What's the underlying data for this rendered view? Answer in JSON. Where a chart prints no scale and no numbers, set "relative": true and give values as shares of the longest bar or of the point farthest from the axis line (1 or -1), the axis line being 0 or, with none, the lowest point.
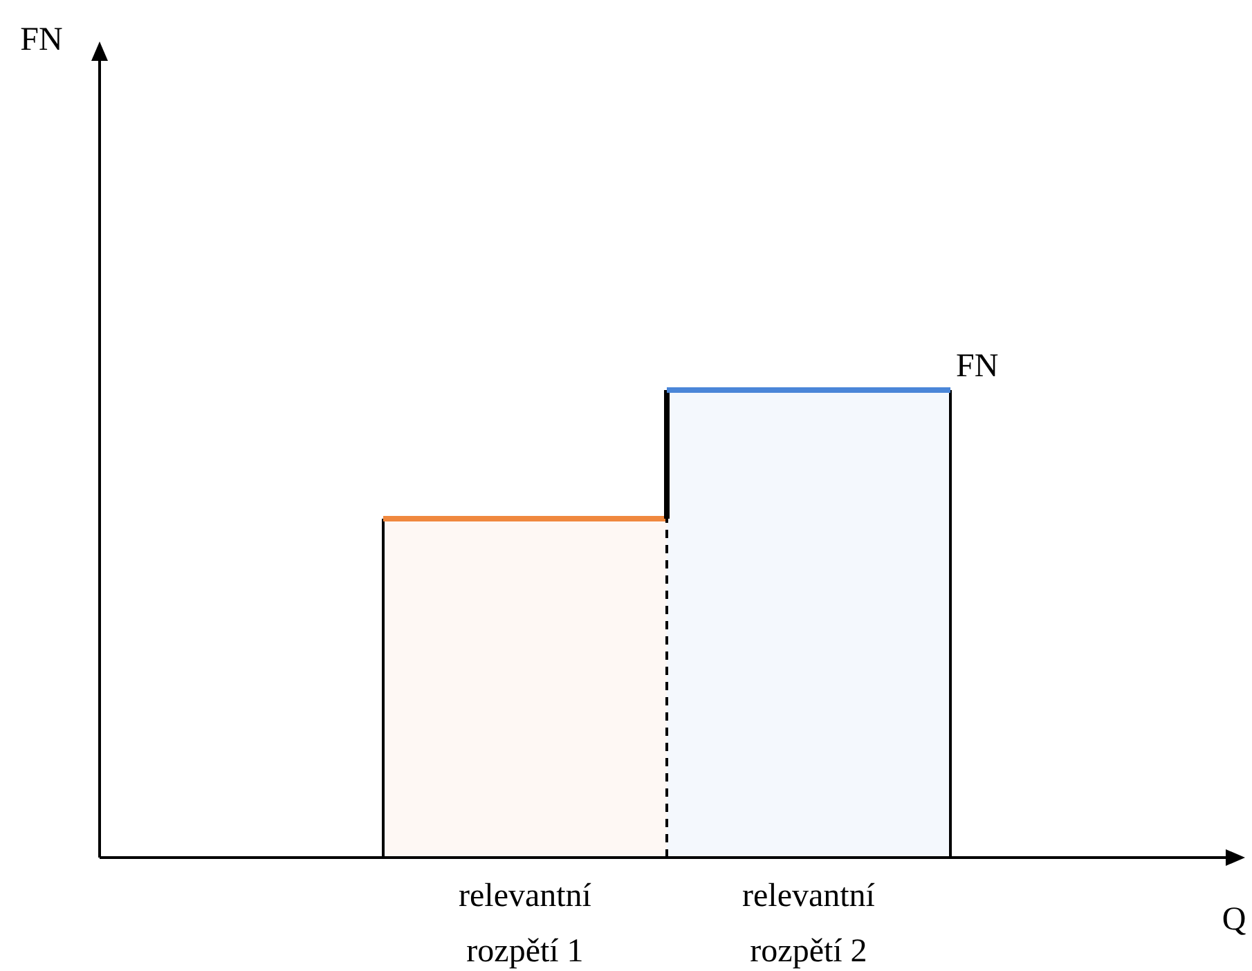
{
  "chart_data": {
    "type": "bar",
    "relative": true,
    "xlabel": "Q",
    "categories": [
      null,
      "relevantní rozpětí 1",
      "relevantní rozpětí 2",
      null
    ],
    "values": [
      null,
      0.725,
      1,
      null
    ],
    "colors": [
      null,
      "#f0883e",
      "#4a86d8",
      null
    ],
    "annotations": [
      "FN",
      "FN"
    ],
    "grid": false
  }
}
